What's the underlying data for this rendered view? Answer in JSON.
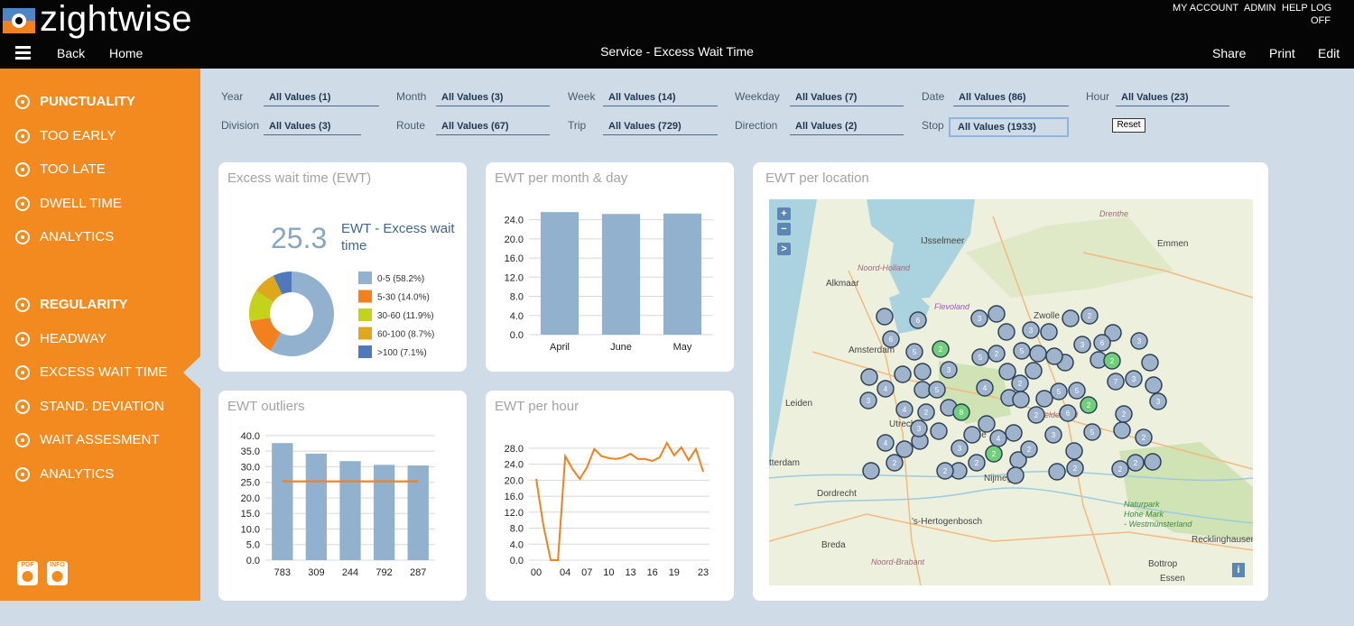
{
  "header": {
    "logo": "zightwise",
    "links": [
      "MY ACCOUNT",
      "ADMIN",
      "HELP",
      "LOG OFF"
    ],
    "nav": [
      "Back",
      "Home"
    ],
    "title": "Service - Excess Wait Time",
    "actions": [
      "Share",
      "Print",
      "Edit"
    ]
  },
  "sidebar": {
    "sections": [
      {
        "title": "PUNCTUALITY",
        "items": [
          "TOO EARLY",
          "TOO LATE",
          "DWELL TIME",
          "ANALYTICS"
        ]
      },
      {
        "title": "REGULARITY",
        "items": [
          "HEADWAY",
          "EXCESS WAIT TIME",
          "STAND. DEVIATION",
          "WAIT ASSESMENT",
          "ANALYTICS"
        ]
      }
    ],
    "icons": [
      "PDF",
      "INFO"
    ]
  },
  "filters": {
    "items": [
      {
        "label": "Year",
        "value": "All Values (1)"
      },
      {
        "label": "Month",
        "value": "All Values (3)"
      },
      {
        "label": "Week",
        "value": "All Values (14)"
      },
      {
        "label": "Weekday",
        "value": "All Values (7)"
      },
      {
        "label": "Date",
        "value": "All Values (86)"
      },
      {
        "label": "Hour",
        "value": "All Values (23)"
      },
      {
        "label": "Division",
        "value": "All Values (3)"
      },
      {
        "label": "Route",
        "value": "All Values (67)"
      },
      {
        "label": "Trip",
        "value": "All Values (729)"
      },
      {
        "label": "Direction",
        "value": "All Values (2)"
      },
      {
        "label": "Stop",
        "value": "All Values (1933)"
      }
    ],
    "reset": "Reset"
  },
  "chart_data": [
    {
      "type": "pie",
      "title": "Excess wait time (EWT)",
      "kpi_value": 25.3,
      "kpi_label": "EWT - Excess wait time",
      "donut": true,
      "categories": [
        "0-5",
        "5-30",
        "30-60",
        "60-100",
        ">100"
      ],
      "values": [
        58.2,
        14.0,
        11.9,
        8.7,
        7.1
      ],
      "value_labels": [
        "(58.2%)",
        "(14.0%)",
        "(11.9%)",
        "(8.7%)",
        "(7.1%)"
      ],
      "colors": [
        "#91b1cf",
        "#f2801c",
        "#c3d21a",
        "#dfa71c",
        "#4f78bd"
      ]
    },
    {
      "type": "bar",
      "title": "EWT per month & day",
      "categories": [
        "April",
        "June",
        "May"
      ],
      "values": [
        25.6,
        25.2,
        25.3
      ],
      "color": "#91b1cf",
      "ylim": [
        0,
        26
      ],
      "yticks": [
        {
          "value": 0,
          "label": "0.0"
        },
        {
          "value": 4,
          "label": "4.0"
        },
        {
          "value": 8,
          "label": "8.0"
        },
        {
          "value": 12,
          "label": "12.0"
        },
        {
          "value": 16,
          "label": "16.0"
        },
        {
          "value": 20,
          "label": "20.0"
        },
        {
          "value": 24,
          "label": "24.0"
        }
      ],
      "grid": true
    },
    {
      "type": "bar",
      "title": "EWT outliers",
      "categories": [
        "783",
        "309",
        "244",
        "792",
        "287"
      ],
      "series": [
        {
          "color": "#91b1cf",
          "values": [
            37.6,
            34.2,
            31.8,
            30.6,
            30.4
          ]
        },
        {
          "type": "line",
          "color": "#f2801c",
          "values": [
            25.3,
            25.3,
            25.3,
            25.3,
            25.3
          ]
        }
      ],
      "ylim": [
        0,
        42
      ],
      "yticks": [
        {
          "value": 0,
          "label": "0.0"
        },
        {
          "value": 5,
          "label": "5.0"
        },
        {
          "value": 10,
          "label": "10.0"
        },
        {
          "value": 15,
          "label": "15.0"
        },
        {
          "value": 20,
          "label": "20.0"
        },
        {
          "value": 25,
          "label": "25.0"
        },
        {
          "value": 30,
          "label": "30.0"
        },
        {
          "value": 35,
          "label": "35.0"
        },
        {
          "value": 40,
          "label": "40.0"
        }
      ],
      "grid": true
    },
    {
      "type": "line",
      "title": "EWT per hour",
      "x": [
        0,
        1,
        2,
        3,
        4,
        5,
        6,
        7,
        8,
        9,
        10,
        11,
        12,
        13,
        14,
        15,
        16,
        17,
        18,
        19,
        20,
        21,
        22,
        23
      ],
      "values": [
        20.3,
        8.6,
        0,
        0,
        26.0,
        22.8,
        20.3,
        23.2,
        27.8,
        26.0,
        25.5,
        25.3,
        25.7,
        26.6,
        25.3,
        25.3,
        24.8,
        25.7,
        29.3,
        26.2,
        28.2,
        25.0,
        27.8,
        22.1
      ],
      "color": "#f2801c",
      "xlim": [
        0,
        23
      ],
      "xticks": [
        {
          "value": 0,
          "label": "00"
        },
        {
          "value": 4,
          "label": "04"
        },
        {
          "value": 7,
          "label": "07"
        },
        10,
        13,
        16,
        19,
        23
      ],
      "ylim": [
        0,
        30
      ],
      "yticks": [
        {
          "value": 0,
          "label": "0.0"
        },
        {
          "value": 4,
          "label": "4.0"
        },
        {
          "value": 8,
          "label": "8.0"
        },
        {
          "value": 12,
          "label": "12.0"
        },
        {
          "value": 16,
          "label": "16.0"
        },
        {
          "value": 20,
          "label": "20.0"
        },
        {
          "value": 24,
          "label": "24.0"
        },
        {
          "value": 28,
          "label": "28.0"
        }
      ],
      "grid": true
    }
  ],
  "map": {
    "title": "EWT per location",
    "controls": [
      "+",
      "−",
      ">"
    ],
    "info": "i",
    "places": [
      "Drenthe",
      "IJsselmeer",
      "Emmen",
      "Noord-Holland",
      "Alkmaar",
      "Flevoland",
      "Zwolle",
      "Amsterdam",
      "Leiden",
      "Utrecht",
      "Ede",
      "Gelderland",
      "tterdam",
      "Nijmegen",
      "Dordrecht",
      "'s-Hertogenbosch",
      "Breda",
      "Noord-Brabant",
      "Naturpark",
      "Hohe Mark",
      "- Westmünsterland",
      "Recklinghausen",
      "Bottrop",
      "Essen"
    ],
    "clusters": [
      6,
      3,
      2,
      6,
      5,
      2,
      5,
      2,
      3,
      3,
      6,
      5,
      3,
      3,
      2,
      3,
      4,
      3,
      4,
      5,
      5,
      7,
      5,
      2,
      8,
      2,
      3,
      2,
      5,
      2,
      6,
      2,
      4,
      3,
      4,
      2,
      4,
      3,
      2,
      3,
      2,
      2,
      2,
      2,
      2,
      2,
      2
    ]
  }
}
